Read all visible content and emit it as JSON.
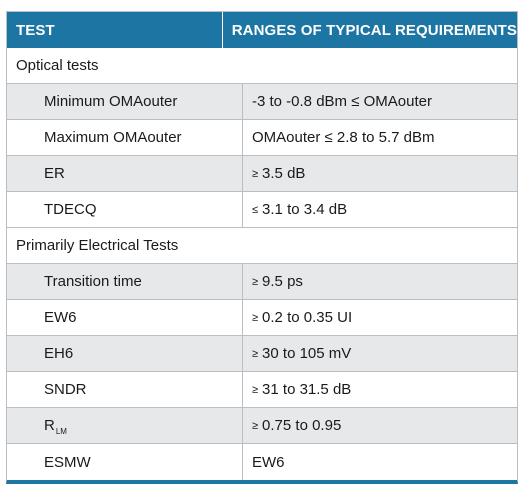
{
  "header": {
    "col1": "TEST",
    "col2": "RANGES OF TYPICAL REQUIREMENTS"
  },
  "sections": [
    {
      "title": "Optical tests",
      "rows": [
        {
          "test": "Minimum OMAouter",
          "range": "-3 to -0.8 dBm ≤ OMAouter"
        },
        {
          "test": "Maximum OMAouter",
          "range": "OMAouter ≤ 2.8 to 5.7 dBm"
        },
        {
          "test": "ER",
          "symbol": "≥",
          "range": "3.5 dB"
        },
        {
          "test": "TDECQ",
          "symbol": "≤",
          "range": "3.1 to 3.4 dB"
        }
      ]
    },
    {
      "title": "Primarily Electrical Tests",
      "rows": [
        {
          "test": "Transition time",
          "symbol": "≥",
          "range": "9.5 ps"
        },
        {
          "test": "EW6",
          "symbol": "≥",
          "range": "0.2 to 0.35 UI"
        },
        {
          "test": "EH6",
          "symbol": "≥",
          "range": "30 to 105 mV"
        },
        {
          "test": "SNDR",
          "symbol": "≥",
          "range": "31 to 31.5 dB"
        },
        {
          "test": "R",
          "test_sub": "LM",
          "symbol": "≥",
          "range": "0.75 to 0.95"
        },
        {
          "test": "ESMW",
          "range": "EW6"
        }
      ]
    }
  ],
  "colors": {
    "header_bg": "#1c75a2",
    "header_text": "#ffffff",
    "shaded_row": "#e6e8ea",
    "border": "#b9bec3"
  }
}
